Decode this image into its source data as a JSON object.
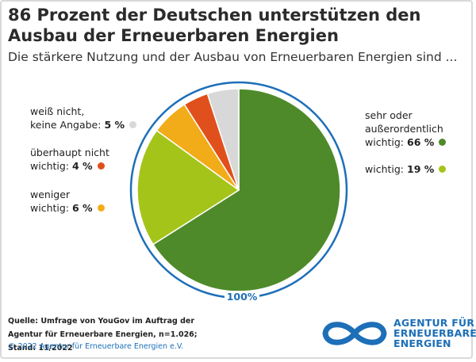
{
  "header": {
    "title": "86 Prozent der Deutschen unterstützen den Ausbau der Erneuerbaren Energien",
    "subtitle": "Die stärkere Nutzung und der Ausbau von Erneuerbaren Energien sind ..."
  },
  "chart_data": {
    "type": "pie",
    "total_label": "100%",
    "slices": [
      {
        "label": "sehr oder außerordentlich wichtig",
        "label_lines": [
          "sehr oder",
          "außerordentlich",
          "wichtig:"
        ],
        "value": 66,
        "value_text": "66 %",
        "color": "#4e8a2a"
      },
      {
        "label": "wichtig",
        "label_lines": [
          "wichtig:"
        ],
        "value": 19,
        "value_text": "19 %",
        "color": "#a4c41a"
      },
      {
        "label": "weniger wichtig",
        "label_lines": [
          "weniger",
          "wichtig:"
        ],
        "value": 6,
        "value_text": "6 %",
        "color": "#f2ac1a"
      },
      {
        "label": "überhaupt nicht wichtig",
        "label_lines": [
          "überhaupt nicht",
          "wichtig:"
        ],
        "value": 4,
        "value_text": "4 %",
        "color": "#e0501c"
      },
      {
        "label": "weiß nicht, keine Angabe",
        "label_lines": [
          "weiß nicht,",
          "keine Angabe:"
        ],
        "value": 5,
        "value_text": "5 %",
        "color": "#d8d8d8"
      }
    ],
    "ring_color": "#1d6fb8"
  },
  "footer": {
    "source_lines": [
      "Quelle: Umfrage von YouGov im Auftrag der",
      "Agentur für Erneuerbare Energien, n=1.026; Stand: 11/2022"
    ],
    "copyright": "© 2022 Agentur für Erneuerbare Energien e.V.",
    "logo_lines": [
      "AGENTUR FÜR",
      "ERNEUERBARE",
      "ENERGIEN"
    ],
    "logo_color": "#1d6fb8"
  }
}
